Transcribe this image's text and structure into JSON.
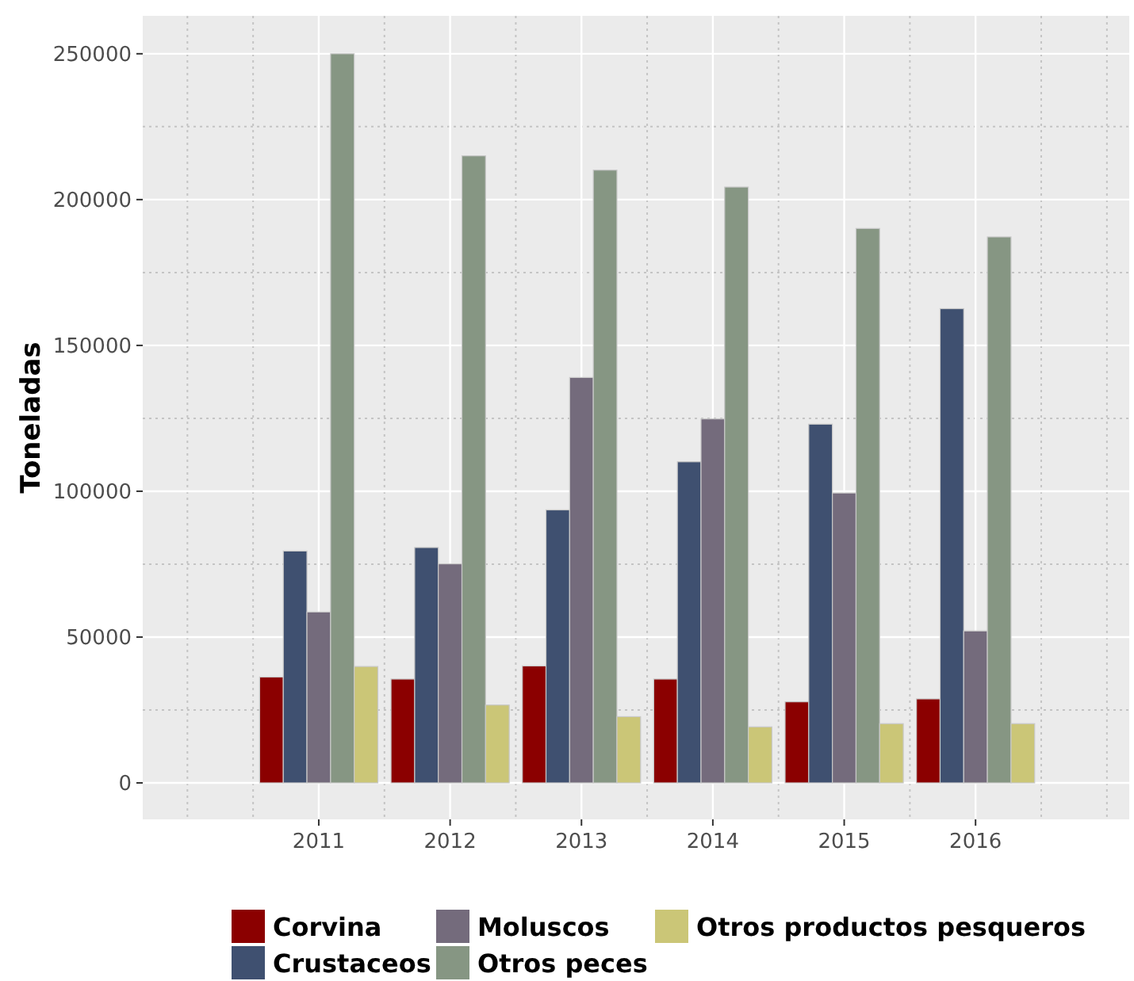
{
  "chart_data": {
    "type": "bar",
    "ylabel": "Toneladas",
    "categories": [
      "2011",
      "2012",
      "2013",
      "2014",
      "2015",
      "2016"
    ],
    "series": [
      {
        "name": "Corvina",
        "color": "#8b0000",
        "values": [
          36300,
          35600,
          40100,
          35600,
          27800,
          28800
        ]
      },
      {
        "name": "Crustaceos",
        "color": "#3f5070",
        "values": [
          79500,
          80700,
          93600,
          110100,
          123000,
          162600
        ]
      },
      {
        "name": "Moluscos",
        "color": "#746b7c",
        "values": [
          58600,
          75100,
          139000,
          124800,
          99400,
          52100
        ]
      },
      {
        "name": "Otros peces",
        "color": "#869683",
        "values": [
          250000,
          215000,
          210100,
          204300,
          190100,
          187200
        ]
      },
      {
        "name": "Otros productos pesqueros",
        "color": "#cbc677",
        "values": [
          39900,
          26700,
          22700,
          19200,
          20300,
          20300
        ]
      }
    ],
    "ylim": [
      -12500,
      263000
    ],
    "yticks": [
      0,
      50000,
      100000,
      150000,
      200000,
      250000
    ],
    "grid": true,
    "legend": "bottom"
  }
}
